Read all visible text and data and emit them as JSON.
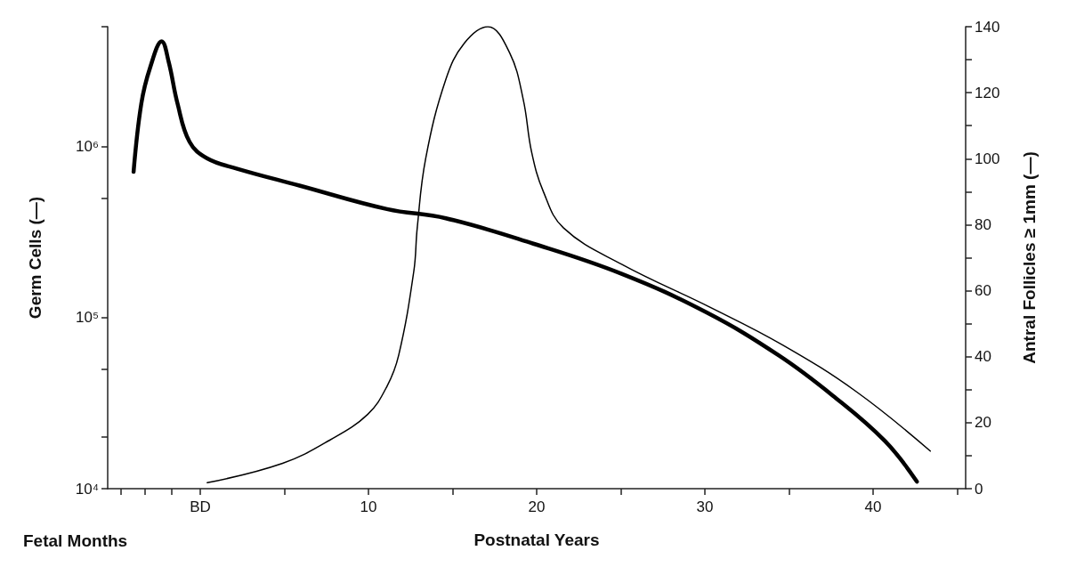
{
  "chart_data": {
    "type": "line",
    "xlabel": "Postnatal Years",
    "ylabel": "Germ Cells (—)",
    "y2label": "Antral Follicles ≥ 1mm (—)",
    "annotations": [
      "Fetal Months"
    ],
    "xlim": [
      -5.5,
      45.5
    ],
    "xticks": [
      {
        "value": -4.7,
        "label": null
      },
      {
        "value": -3.3,
        "label": null
      },
      {
        "value": -1.7,
        "label": null
      },
      {
        "value": 0,
        "label": "BD"
      },
      {
        "value": 5,
        "label": null
      },
      10,
      {
        "value": 15,
        "label": null
      },
      20,
      {
        "value": 25,
        "label": null
      },
      30,
      {
        "value": 35,
        "label": null
      },
      40,
      {
        "value": 45,
        "label": null
      }
    ],
    "log": "y",
    "ylim": [
      10000,
      5000000
    ],
    "yticks": [
      {
        "value": 10000,
        "label": "10⁴"
      },
      {
        "value": 20000,
        "label": null
      },
      {
        "value": 50000,
        "label": null
      },
      {
        "value": 100000,
        "label": "10⁵"
      },
      {
        "value": 500000,
        "label": null
      },
      {
        "value": 1000000,
        "label": "10⁶"
      },
      {
        "value": 5000000,
        "label": null
      }
    ],
    "y2lim": [
      0,
      140
    ],
    "y2ticks": [
      0,
      {
        "value": 10,
        "label": null
      },
      20,
      {
        "value": 30,
        "label": null
      },
      40,
      {
        "value": 50,
        "label": null
      },
      60,
      {
        "value": 70,
        "label": null
      },
      80,
      {
        "value": 90,
        "label": null
      },
      100,
      {
        "value": 110,
        "label": null
      },
      120,
      {
        "value": 130,
        "label": null
      },
      140
    ],
    "grid": false,
    "marker": "none",
    "series": [
      {
        "color": "#000000",
        "axis": "y",
        "x": [
          -3.96,
          -3.5,
          -2.97,
          -2.29,
          -1.87,
          -1.35,
          -0.63,
          0.42,
          2.2,
          5.9,
          11.1,
          14.6,
          19.8,
          25.05,
          30.1,
          34.4,
          37.6,
          40.7,
          42.6
        ],
        "values": [
          710000,
          1780000,
          2900000,
          4100000,
          3100000,
          1780000,
          1060000,
          850000,
          740000,
          590000,
          430000,
          380000,
          270000,
          180000,
          107000,
          60000,
          35000,
          19000,
          11000
        ]
      },
      {
        "color": "#000000",
        "axis": "y2",
        "x": [
          0.42,
          4.9,
          7.7,
          9.95,
          11.1,
          11.8,
          12.7,
          12.9,
          13.4,
          14.6,
          15.7,
          17.1,
          18.4,
          19.2,
          19.7,
          20.4,
          21.6,
          25.05,
          30.3,
          34.6,
          39.0,
          43.4
        ],
        "values": [
          1.8,
          7.7,
          14.7,
          22.5,
          31,
          40.5,
          66,
          79,
          100,
          124,
          135,
          140,
          132,
          118,
          102,
          90,
          79,
          68,
          55,
          43.6,
          29.4,
          11.4
        ]
      }
    ]
  }
}
